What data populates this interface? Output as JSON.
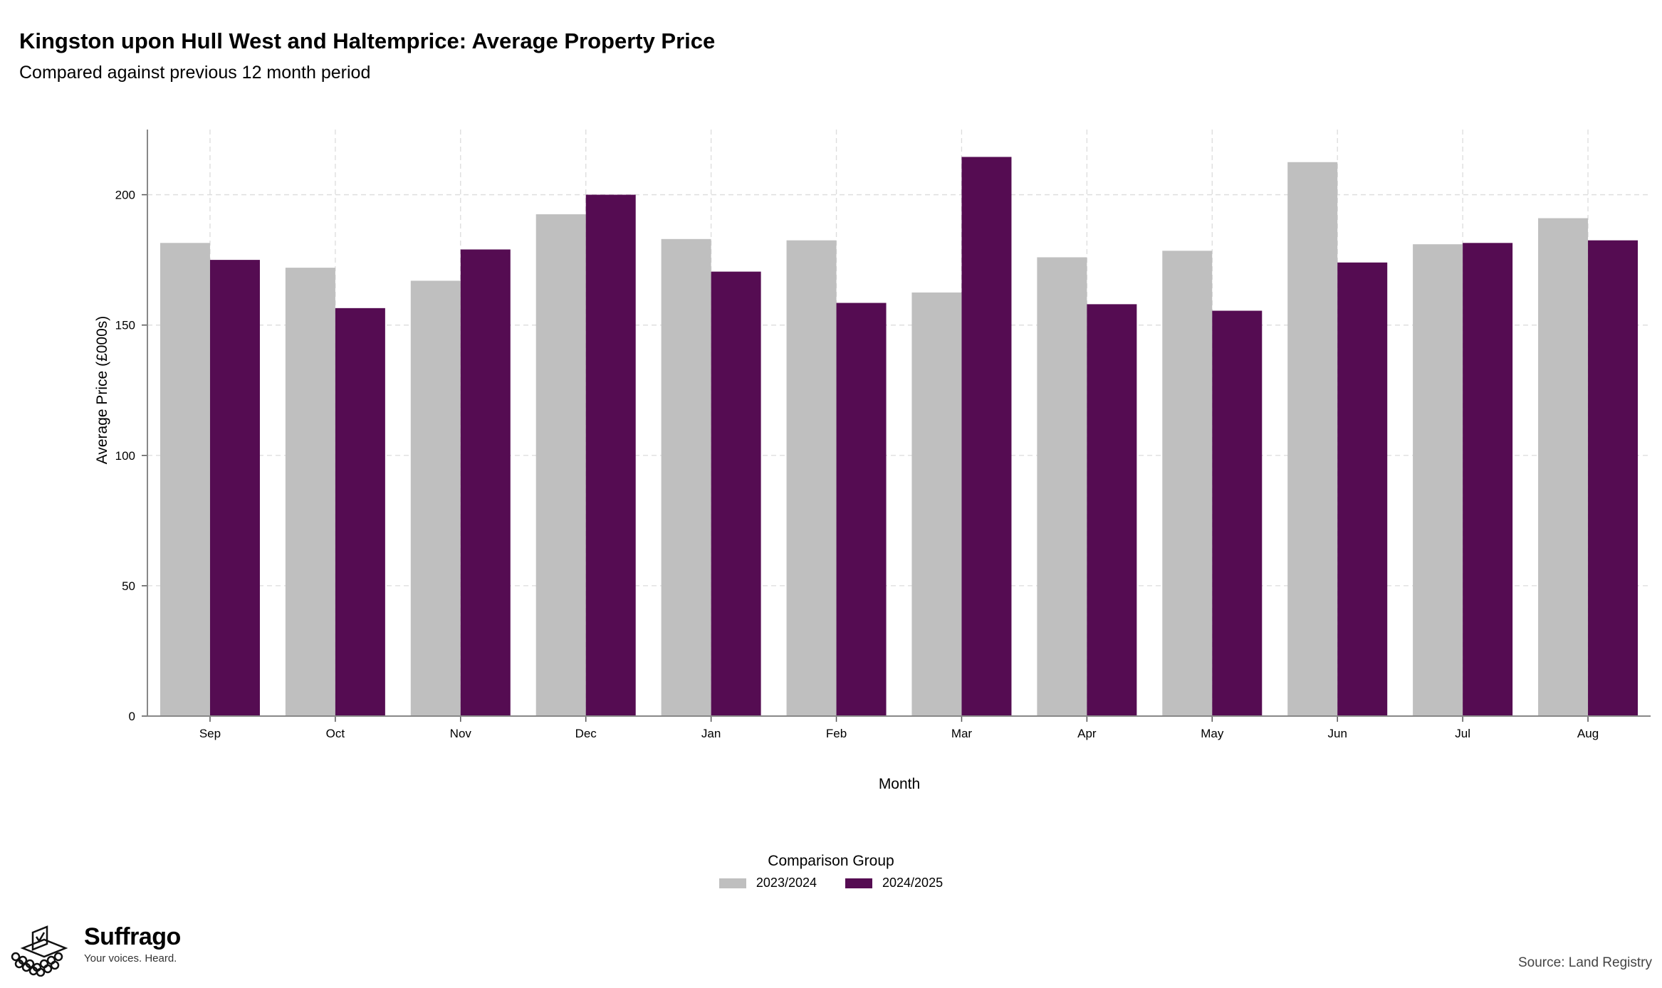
{
  "header": {
    "title": "Kingston upon Hull West and Haltemprice: Average Property Price",
    "subtitle": "Compared against previous 12 month period"
  },
  "legend": {
    "title": "Comparison Group"
  },
  "footer": {
    "logo_name": "Suffrago",
    "logo_tagline": "Your voices. Heard.",
    "source": "Source: Land Registry"
  },
  "chart_data": {
    "type": "bar",
    "title": "Kingston upon Hull West and Haltemprice: Average Property Price",
    "subtitle": "Compared against previous 12 month period",
    "xlabel": "Month",
    "ylabel": "Average Price (£000s)",
    "categories": [
      "Sep",
      "Oct",
      "Nov",
      "Dec",
      "Jan",
      "Feb",
      "Mar",
      "Apr",
      "May",
      "Jun",
      "Jul",
      "Aug"
    ],
    "series": [
      {
        "name": "2023/2024",
        "color": "#bfbfbf",
        "values": [
          181.5,
          172,
          167,
          192.5,
          183,
          182.5,
          162.5,
          176,
          178.5,
          212.5,
          181,
          191
        ]
      },
      {
        "name": "2024/2025",
        "color": "#550c52",
        "values": [
          175,
          156.5,
          179,
          200,
          170.5,
          158.5,
          214.5,
          158,
          155.5,
          174,
          181.5,
          182.5
        ]
      }
    ],
    "ylim": [
      0,
      225
    ],
    "yticks": [
      0,
      50,
      100,
      150,
      200
    ],
    "grid": true,
    "legend_position": "bottom"
  }
}
